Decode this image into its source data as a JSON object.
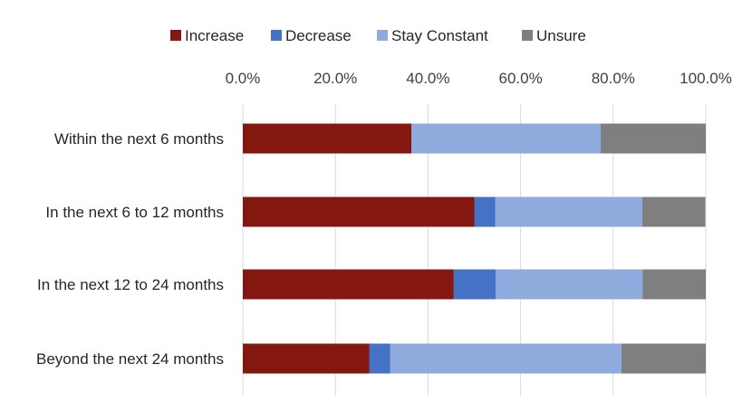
{
  "chart_data": {
    "type": "bar",
    "orientation": "horizontal",
    "stacked": "percent",
    "title": "",
    "xlabel": "",
    "ylabel": "",
    "xlim": [
      0,
      100
    ],
    "x_ticks": [
      "0.0%",
      "20.0%",
      "40.0%",
      "60.0%",
      "80.0%",
      "100.0%"
    ],
    "x_axis_position": "top",
    "grid": true,
    "legend_position": "top",
    "categories": [
      "Within the next 6 months",
      "In the next 6 to 12 months",
      "In the next 12 to 24 months",
      "Beyond the next 24 months"
    ],
    "series": [
      {
        "name": "Increase",
        "color": "#841811",
        "values": [
          36.4,
          50.0,
          45.5,
          27.3
        ]
      },
      {
        "name": "Decrease",
        "color": "#4472C4",
        "values": [
          0.0,
          4.5,
          9.1,
          4.5
        ]
      },
      {
        "name": "Stay Constant",
        "color": "#8FAADC",
        "values": [
          40.9,
          31.8,
          31.8,
          50.0
        ]
      },
      {
        "name": "Unsure",
        "color": "#7F7F7F",
        "values": [
          22.7,
          13.6,
          13.6,
          18.2
        ]
      }
    ]
  }
}
